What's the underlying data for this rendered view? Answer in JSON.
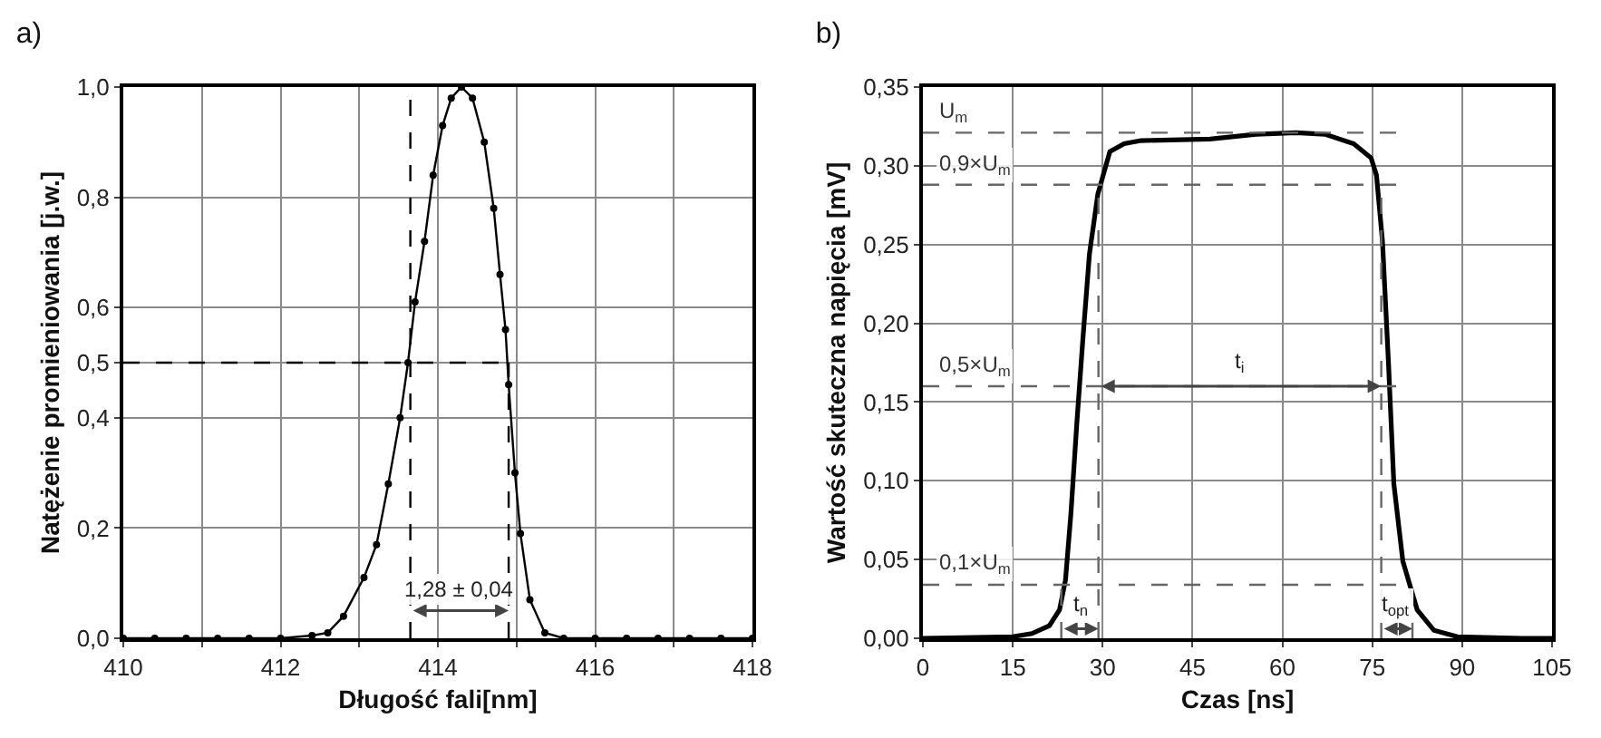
{
  "chart_data": [
    {
      "type": "line",
      "title": "a)",
      "xlabel": "Długość fali[nm]",
      "ylabel": "Natężenie promieniowania [j.w.]",
      "marker": "circle",
      "grid": true,
      "xlim": [
        410,
        418
      ],
      "xticks": [
        410,
        {
          "value": 411,
          "label": null
        },
        412,
        {
          "value": 413,
          "label": null
        },
        414,
        {
          "value": 415,
          "label": null
        },
        416,
        {
          "value": 417,
          "label": null
        },
        418
      ],
      "ylim": [
        0,
        1
      ],
      "yticks": [
        {
          "value": 0,
          "label": "0,0"
        },
        {
          "value": 0.2,
          "label": "0,2"
        },
        {
          "value": 0.4,
          "label": "0,4"
        },
        {
          "value": 0.5,
          "label": "0,5"
        },
        {
          "value": 0.6,
          "label": "0,6"
        },
        {
          "value": 0.8,
          "label": "0,8"
        },
        {
          "value": 1,
          "label": "1,0"
        }
      ],
      "series": [
        {
          "color": "#000000",
          "x": [
            410,
            410.4,
            410.8,
            411.2,
            411.6,
            412,
            412.4,
            412.6,
            412.8,
            413.06,
            413.22,
            413.37,
            413.52,
            413.62,
            413.71,
            413.83,
            413.94,
            414.06,
            414.17,
            414.3,
            414.44,
            414.59,
            414.71,
            414.79,
            414.86,
            414.9,
            414.98,
            415.05,
            415.17,
            415.36,
            415.6,
            416,
            416.4,
            416.8,
            417.2,
            417.6,
            418
          ],
          "values": [
            0,
            0,
            0,
            0,
            0,
            0,
            0.005,
            0.01,
            0.04,
            0.11,
            0.17,
            0.28,
            0.4,
            0.5,
            0.61,
            0.72,
            0.84,
            0.93,
            0.98,
            1,
            0.98,
            0.9,
            0.78,
            0.66,
            0.56,
            0.46,
            0.3,
            0.19,
            0.07,
            0.01,
            0,
            0,
            0,
            0,
            0,
            0,
            0
          ]
        }
      ],
      "ref_lines": [
        {
          "axis": "y",
          "value": 0.5,
          "line_style": "dashed",
          "color": "#000000"
        },
        {
          "axis": "x",
          "value": 413.65,
          "line_style": "dashed",
          "color": "#000000"
        },
        {
          "axis": "x",
          "value": 414.9,
          "line_style": "dashed",
          "color": "#000000"
        }
      ],
      "annotations": [
        {
          "text": "1,28 ± 0,04",
          "x": 414.9,
          "y": 0.05
        }
      ]
    },
    {
      "type": "line",
      "title": "b)",
      "xlabel": "Czas [ns]",
      "ylabel": "Wartość skuteczna napięcia [mV]",
      "grid": true,
      "xlim": [
        0,
        105
      ],
      "xticks": [
        0,
        15,
        30,
        45,
        60,
        75,
        90,
        105
      ],
      "ylim": [
        0,
        0.35
      ],
      "yticks": [
        {
          "value": 0,
          "label": "0,00"
        },
        {
          "value": 0.05,
          "label": "0,05"
        },
        {
          "value": 0.1,
          "label": "0,10"
        },
        {
          "value": 0.15,
          "label": "0,15"
        },
        {
          "value": 0.2,
          "label": "0,20"
        },
        {
          "value": 0.25,
          "label": "0,25"
        },
        {
          "value": 0.3,
          "label": "0,30"
        },
        {
          "value": 0.35,
          "label": "0,35"
        }
      ],
      "series": [
        {
          "color": "#000000",
          "x": [
            0,
            15,
            18.2,
            21.1,
            22.8,
            23.8,
            24.7,
            25.7,
            26.7,
            27.8,
            29.2,
            31.2,
            33.6,
            36.4,
            47.9,
            55.6,
            62.3,
            67.1,
            71.9,
            74.8,
            75.7,
            76.7,
            77.7,
            78.6,
            80.1,
            82.5,
            85.3,
            89.2,
            100,
            105
          ],
          "values": [
            0,
            0.001,
            0.003,
            0.008,
            0.018,
            0.037,
            0.079,
            0.137,
            0.19,
            0.244,
            0.282,
            0.309,
            0.314,
            0.316,
            0.317,
            0.32,
            0.321,
            0.32,
            0.314,
            0.305,
            0.294,
            0.252,
            0.175,
            0.098,
            0.049,
            0.018,
            0.005,
            0.001,
            0,
            0
          ]
        }
      ],
      "ref_lines": [
        {
          "axis": "y",
          "value": 0.321,
          "label": "U$_{m}$",
          "line_style": "dashed",
          "color": "#666666"
        },
        {
          "axis": "y",
          "value": 0.288,
          "label": "0,9×U$_{m}$",
          "line_style": "dashed",
          "color": "#666666"
        },
        {
          "axis": "y",
          "value": 0.16,
          "label": "0,5×U$_{m}$",
          "line_style": "dashed",
          "color": "#666666"
        },
        {
          "axis": "y",
          "value": 0.034,
          "label": "0,1×U$_{m}$",
          "line_style": "dashed",
          "color": "#666666"
        },
        {
          "axis": "x",
          "value": 23.1,
          "line_style": "dashed",
          "color": "#666666"
        },
        {
          "axis": "x",
          "value": 29.3,
          "line_style": "dashed",
          "color": "#666666"
        },
        {
          "axis": "x",
          "value": 76.5,
          "line_style": "dashed",
          "color": "#666666"
        },
        {
          "axis": "x",
          "value": 81.7,
          "line_style": "dashed",
          "color": "#666666"
        }
      ],
      "annotations": [
        {
          "text": "t$_{n}$",
          "x": 29.3,
          "y": 0.006
        },
        {
          "text": "t$_{i}$",
          "x": 52.9,
          "y": 0.16
        },
        {
          "text": "t$_{opt}$",
          "x": 81.7,
          "y": 0.006
        }
      ]
    }
  ]
}
